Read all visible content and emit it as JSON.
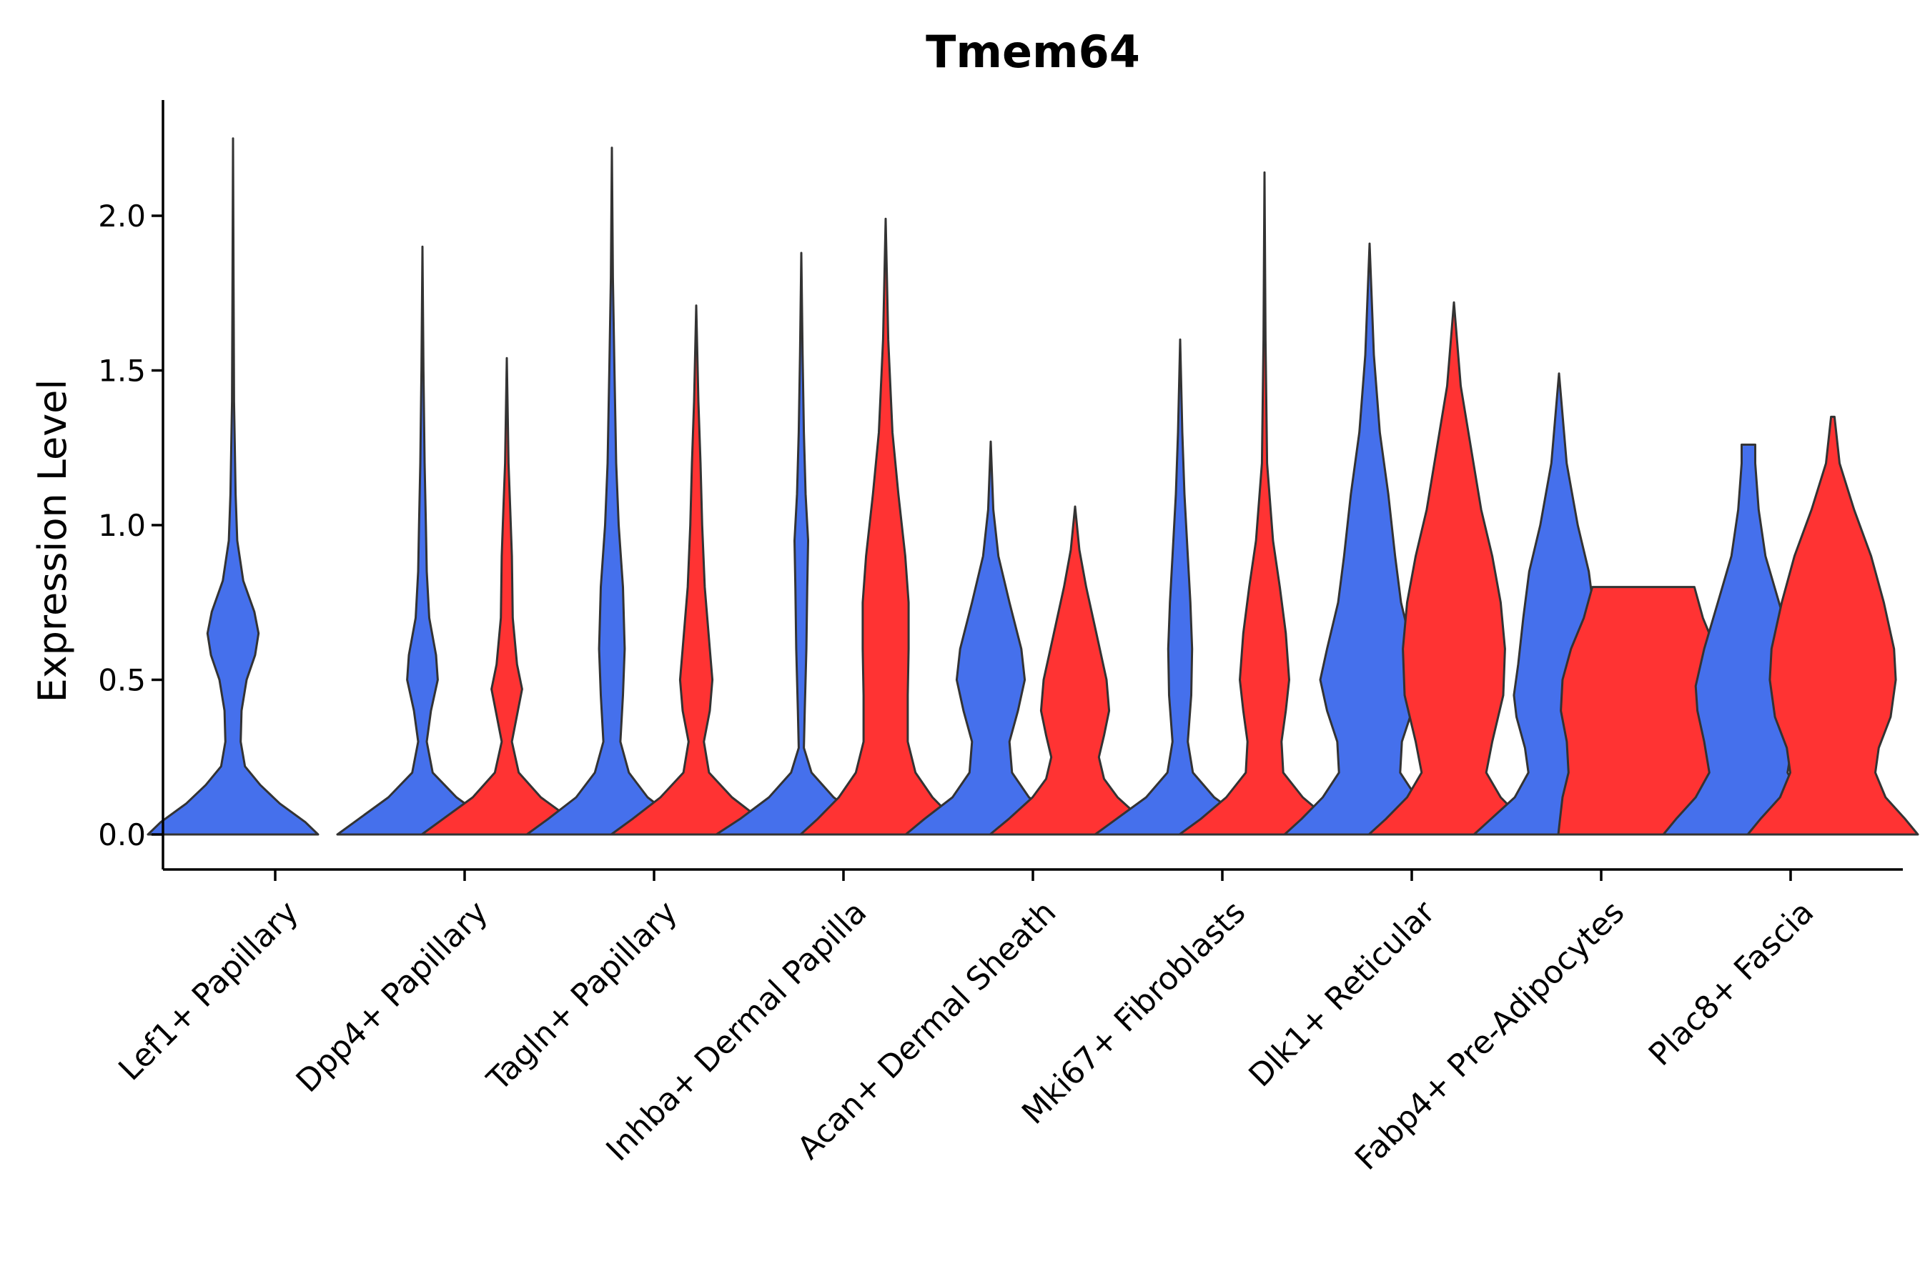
{
  "chart_data": {
    "type": "violin",
    "title": "Tmem64",
    "xlabel": "",
    "ylabel": "Expression Level",
    "ylim": [
      -0.12,
      2.38
    ],
    "yticks": [
      0.0,
      0.5,
      1.0,
      1.5,
      2.0
    ],
    "ytick_labels": [
      "0.0",
      "0.5",
      "1.0",
      "1.5",
      "2.0"
    ],
    "categories": [
      "Lef1+ Papillary",
      "Dpp4+ Papillary",
      "Tagln+ Papillary",
      "Inhba+ Dermal Papilla",
      "Acan+ Dermal Sheath",
      "Mki67+ Fibroblasts",
      "Dlk1+ Reticular",
      "Fabp4+ Pre-Adipocytes",
      "Plac8+ Fascia"
    ],
    "series": [
      {
        "name": "blue",
        "color": "#4570EC"
      },
      {
        "name": "red",
        "color": "#FF3333"
      }
    ],
    "violins": [
      {
        "category": 0,
        "series": 0,
        "max": 2.25,
        "profile": [
          [
            0,
            1.0
          ],
          [
            0.04,
            0.85
          ],
          [
            0.1,
            0.55
          ],
          [
            0.16,
            0.32
          ],
          [
            0.22,
            0.14
          ],
          [
            0.3,
            0.09
          ],
          [
            0.4,
            0.1
          ],
          [
            0.5,
            0.16
          ],
          [
            0.58,
            0.26
          ],
          [
            0.65,
            0.3
          ],
          [
            0.72,
            0.25
          ],
          [
            0.82,
            0.12
          ],
          [
            0.95,
            0.05
          ],
          [
            1.1,
            0.03
          ],
          [
            1.4,
            0.012
          ],
          [
            1.8,
            0.006
          ],
          [
            2.25,
            0.0
          ]
        ]
      },
      {
        "category": 1,
        "series": 0,
        "max": 1.9,
        "profile": [
          [
            0,
            1.0
          ],
          [
            0.05,
            0.75
          ],
          [
            0.12,
            0.4
          ],
          [
            0.2,
            0.12
          ],
          [
            0.3,
            0.05
          ],
          [
            0.4,
            0.1
          ],
          [
            0.5,
            0.18
          ],
          [
            0.58,
            0.16
          ],
          [
            0.7,
            0.08
          ],
          [
            0.85,
            0.05
          ],
          [
            1.0,
            0.04
          ],
          [
            1.2,
            0.025
          ],
          [
            1.5,
            0.012
          ],
          [
            1.9,
            0.0
          ]
        ]
      },
      {
        "category": 1,
        "series": 1,
        "max": 1.54,
        "profile": [
          [
            0,
            1.0
          ],
          [
            0.05,
            0.75
          ],
          [
            0.12,
            0.4
          ],
          [
            0.2,
            0.14
          ],
          [
            0.3,
            0.06
          ],
          [
            0.4,
            0.13
          ],
          [
            0.47,
            0.18
          ],
          [
            0.55,
            0.12
          ],
          [
            0.7,
            0.07
          ],
          [
            0.9,
            0.06
          ],
          [
            1.05,
            0.04
          ],
          [
            1.2,
            0.02
          ],
          [
            1.54,
            0.0
          ]
        ]
      },
      {
        "category": 2,
        "series": 0,
        "max": 2.22,
        "profile": [
          [
            0,
            1.0
          ],
          [
            0.05,
            0.75
          ],
          [
            0.12,
            0.42
          ],
          [
            0.2,
            0.2
          ],
          [
            0.3,
            0.1
          ],
          [
            0.45,
            0.13
          ],
          [
            0.6,
            0.15
          ],
          [
            0.8,
            0.13
          ],
          [
            1.0,
            0.08
          ],
          [
            1.2,
            0.05
          ],
          [
            1.5,
            0.03
          ],
          [
            1.8,
            0.012
          ],
          [
            2.22,
            0.0
          ]
        ]
      },
      {
        "category": 2,
        "series": 1,
        "max": 1.71,
        "profile": [
          [
            0,
            1.0
          ],
          [
            0.05,
            0.75
          ],
          [
            0.12,
            0.42
          ],
          [
            0.2,
            0.15
          ],
          [
            0.3,
            0.09
          ],
          [
            0.4,
            0.16
          ],
          [
            0.5,
            0.19
          ],
          [
            0.6,
            0.16
          ],
          [
            0.8,
            0.1
          ],
          [
            1.0,
            0.07
          ],
          [
            1.2,
            0.05
          ],
          [
            1.4,
            0.025
          ],
          [
            1.71,
            0.0
          ]
        ]
      },
      {
        "category": 3,
        "series": 0,
        "max": 1.88,
        "profile": [
          [
            0,
            1.0
          ],
          [
            0.05,
            0.72
          ],
          [
            0.12,
            0.38
          ],
          [
            0.2,
            0.12
          ],
          [
            0.28,
            0.03
          ],
          [
            0.4,
            0.04
          ],
          [
            0.6,
            0.06
          ],
          [
            0.8,
            0.07
          ],
          [
            0.95,
            0.08
          ],
          [
            1.1,
            0.05
          ],
          [
            1.3,
            0.03
          ],
          [
            1.55,
            0.015
          ],
          [
            1.88,
            0.0
          ]
        ]
      },
      {
        "category": 3,
        "series": 1,
        "max": 1.99,
        "profile": [
          [
            0,
            1.0
          ],
          [
            0.05,
            0.8
          ],
          [
            0.12,
            0.55
          ],
          [
            0.2,
            0.35
          ],
          [
            0.3,
            0.26
          ],
          [
            0.45,
            0.26
          ],
          [
            0.6,
            0.27
          ],
          [
            0.75,
            0.27
          ],
          [
            0.9,
            0.23
          ],
          [
            1.1,
            0.15
          ],
          [
            1.3,
            0.08
          ],
          [
            1.6,
            0.03
          ],
          [
            1.99,
            0.0
          ]
        ]
      },
      {
        "category": 4,
        "series": 0,
        "max": 1.27,
        "profile": [
          [
            0,
            1.0
          ],
          [
            0.05,
            0.78
          ],
          [
            0.12,
            0.45
          ],
          [
            0.2,
            0.25
          ],
          [
            0.3,
            0.22
          ],
          [
            0.4,
            0.32
          ],
          [
            0.5,
            0.4
          ],
          [
            0.6,
            0.36
          ],
          [
            0.75,
            0.22
          ],
          [
            0.9,
            0.09
          ],
          [
            1.05,
            0.03
          ],
          [
            1.27,
            0.0
          ]
        ]
      },
      {
        "category": 4,
        "series": 1,
        "max": 1.06,
        "profile": [
          [
            0,
            1.0
          ],
          [
            0.05,
            0.78
          ],
          [
            0.12,
            0.5
          ],
          [
            0.18,
            0.34
          ],
          [
            0.25,
            0.28
          ],
          [
            0.32,
            0.34
          ],
          [
            0.4,
            0.4
          ],
          [
            0.5,
            0.37
          ],
          [
            0.65,
            0.25
          ],
          [
            0.8,
            0.13
          ],
          [
            0.92,
            0.05
          ],
          [
            1.06,
            0.0
          ]
        ]
      },
      {
        "category": 5,
        "series": 0,
        "max": 1.6,
        "profile": [
          [
            0,
            1.0
          ],
          [
            0.05,
            0.75
          ],
          [
            0.12,
            0.4
          ],
          [
            0.2,
            0.15
          ],
          [
            0.3,
            0.09
          ],
          [
            0.45,
            0.13
          ],
          [
            0.6,
            0.14
          ],
          [
            0.75,
            0.12
          ],
          [
            0.9,
            0.09
          ],
          [
            1.1,
            0.05
          ],
          [
            1.3,
            0.025
          ],
          [
            1.6,
            0.0
          ]
        ]
      },
      {
        "category": 5,
        "series": 1,
        "max": 2.14,
        "profile": [
          [
            0,
            1.0
          ],
          [
            0.05,
            0.75
          ],
          [
            0.12,
            0.45
          ],
          [
            0.2,
            0.22
          ],
          [
            0.3,
            0.2
          ],
          [
            0.4,
            0.25
          ],
          [
            0.5,
            0.29
          ],
          [
            0.65,
            0.25
          ],
          [
            0.8,
            0.18
          ],
          [
            0.95,
            0.1
          ],
          [
            1.2,
            0.03
          ],
          [
            1.6,
            0.012
          ],
          [
            2.14,
            0.0
          ]
        ]
      },
      {
        "category": 6,
        "series": 0,
        "max": 1.91,
        "profile": [
          [
            0,
            1.0
          ],
          [
            0.05,
            0.8
          ],
          [
            0.12,
            0.55
          ],
          [
            0.2,
            0.36
          ],
          [
            0.3,
            0.38
          ],
          [
            0.4,
            0.5
          ],
          [
            0.5,
            0.58
          ],
          [
            0.6,
            0.5
          ],
          [
            0.75,
            0.37
          ],
          [
            0.9,
            0.3
          ],
          [
            1.1,
            0.22
          ],
          [
            1.3,
            0.12
          ],
          [
            1.55,
            0.05
          ],
          [
            1.91,
            0.0
          ]
        ]
      },
      {
        "category": 6,
        "series": 1,
        "max": 1.72,
        "profile": [
          [
            0,
            1.0
          ],
          [
            0.05,
            0.8
          ],
          [
            0.12,
            0.55
          ],
          [
            0.2,
            0.38
          ],
          [
            0.3,
            0.45
          ],
          [
            0.45,
            0.58
          ],
          [
            0.6,
            0.6
          ],
          [
            0.75,
            0.55
          ],
          [
            0.9,
            0.45
          ],
          [
            1.05,
            0.32
          ],
          [
            1.25,
            0.2
          ],
          [
            1.45,
            0.08
          ],
          [
            1.72,
            0.0
          ]
        ]
      },
      {
        "category": 7,
        "series": 0,
        "max": 1.49,
        "profile": [
          [
            0,
            1.0
          ],
          [
            0.05,
            0.8
          ],
          [
            0.12,
            0.52
          ],
          [
            0.2,
            0.36
          ],
          [
            0.28,
            0.4
          ],
          [
            0.38,
            0.5
          ],
          [
            0.45,
            0.53
          ],
          [
            0.55,
            0.48
          ],
          [
            0.7,
            0.42
          ],
          [
            0.85,
            0.35
          ],
          [
            1.0,
            0.22
          ],
          [
            1.2,
            0.09
          ],
          [
            1.49,
            0.0
          ]
        ]
      },
      {
        "category": 7,
        "series": 1,
        "max": 0.8,
        "profile": [
          [
            0,
            1.0
          ],
          [
            0.05,
            0.98
          ],
          [
            0.12,
            0.95
          ],
          [
            0.2,
            0.88
          ],
          [
            0.3,
            0.9
          ],
          [
            0.4,
            0.97
          ],
          [
            0.5,
            0.95
          ],
          [
            0.6,
            0.85
          ],
          [
            0.7,
            0.7
          ],
          [
            0.8,
            0.6
          ],
          [
            0.8,
            0.0
          ]
        ]
      },
      {
        "category": 8,
        "series": 0,
        "max": 1.26,
        "profile": [
          [
            0,
            1.0
          ],
          [
            0.05,
            0.85
          ],
          [
            0.12,
            0.62
          ],
          [
            0.2,
            0.46
          ],
          [
            0.3,
            0.52
          ],
          [
            0.4,
            0.6
          ],
          [
            0.48,
            0.62
          ],
          [
            0.6,
            0.52
          ],
          [
            0.75,
            0.36
          ],
          [
            0.9,
            0.2
          ],
          [
            1.05,
            0.12
          ],
          [
            1.2,
            0.08
          ],
          [
            1.26,
            0.08
          ],
          [
            1.26,
            0.0
          ]
        ]
      },
      {
        "category": 8,
        "series": 1,
        "max": 1.35,
        "profile": [
          [
            0,
            1.0
          ],
          [
            0.05,
            0.85
          ],
          [
            0.12,
            0.62
          ],
          [
            0.2,
            0.5
          ],
          [
            0.28,
            0.54
          ],
          [
            0.38,
            0.68
          ],
          [
            0.5,
            0.74
          ],
          [
            0.6,
            0.72
          ],
          [
            0.75,
            0.6
          ],
          [
            0.9,
            0.45
          ],
          [
            1.05,
            0.25
          ],
          [
            1.2,
            0.08
          ],
          [
            1.35,
            0.02
          ],
          [
            1.35,
            0.0
          ]
        ]
      }
    ]
  }
}
